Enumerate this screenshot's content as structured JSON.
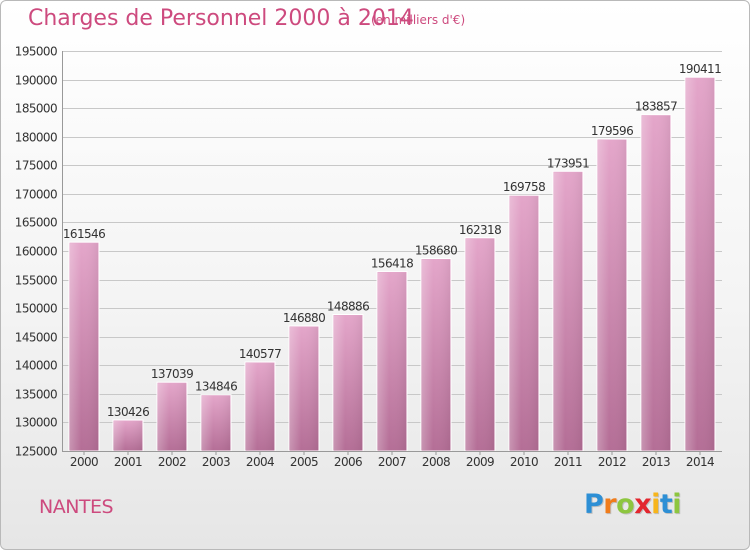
{
  "title": "Charges de Personnel 2000 à 2014",
  "subtitle": "(en milliers d'€)",
  "city": "NANTES",
  "logo": {
    "letters": [
      "P",
      "r",
      "o",
      "x",
      "i",
      "t",
      "i"
    ],
    "colors": [
      "#2d8fd5",
      "#f07c1b",
      "#8dc63f",
      "#e3262e",
      "#f7b51b",
      "#2d8fd5",
      "#8dc63f"
    ]
  },
  "colors": {
    "accent": "#cd4a7e",
    "bar_top": "#e4a6ca",
    "bar_bottom": "#b46e96",
    "grid": "#c8c8c8"
  },
  "chart_data": {
    "type": "bar",
    "title": "Charges de Personnel 2000 à 2014",
    "subtitle": "(en milliers d'€)",
    "categories": [
      "2000",
      "2001",
      "2002",
      "2003",
      "2004",
      "2005",
      "2006",
      "2007",
      "2008",
      "2009",
      "2010",
      "2011",
      "2012",
      "2013",
      "2014"
    ],
    "values": [
      161546,
      130426,
      137039,
      134846,
      140577,
      146880,
      148886,
      156418,
      158680,
      162318,
      169758,
      173951,
      179596,
      183857,
      190411
    ],
    "ylim": [
      125000,
      195000
    ],
    "yticks": [
      125000,
      130000,
      135000,
      140000,
      145000,
      150000,
      155000,
      160000,
      165000,
      170000,
      175000,
      180000,
      185000,
      190000,
      195000
    ],
    "grid": true,
    "xlabel": "",
    "ylabel": ""
  }
}
